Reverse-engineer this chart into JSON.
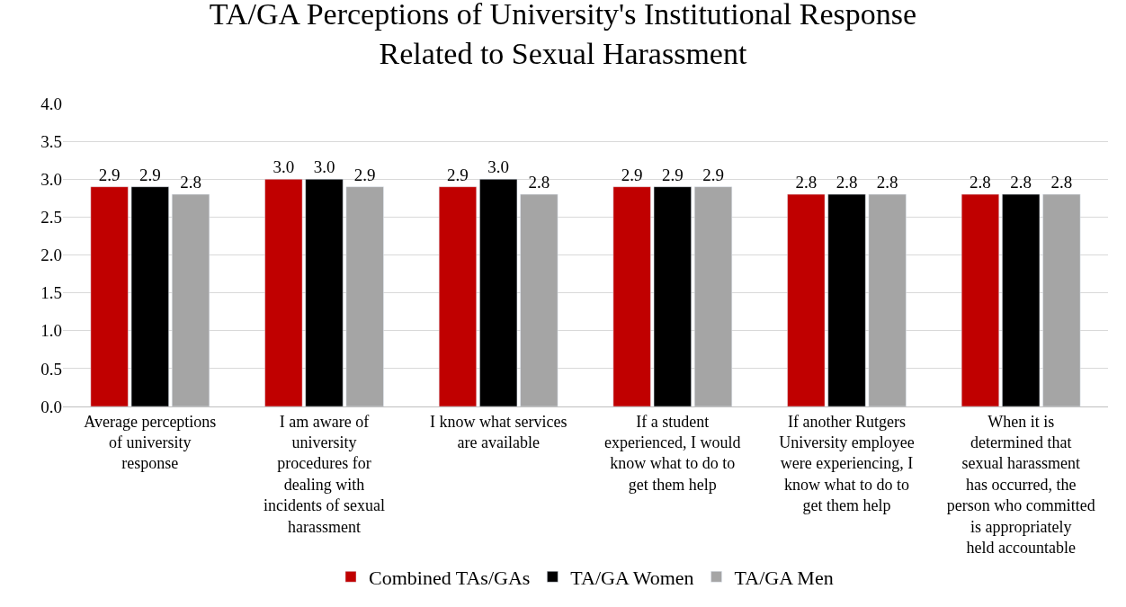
{
  "chart_data": {
    "type": "bar",
    "title": "TA/GA Perceptions of University's Institutional Response Related to Sexual Harassment",
    "categories": [
      "Average perceptions of university response",
      "I am aware of university procedures for dealing with incidents of sexual harassment",
      "I know what services are available",
      "If a student experienced, I would know what to do to get them help",
      "If another Rutgers University employee were experiencing, I know what to do to get them help",
      "When it is determined that sexual harassment has occurred, the person who committed is appropriately held accountable"
    ],
    "series": [
      {
        "name": "Combined TAs/GAs",
        "color": "#c00000",
        "values": [
          2.9,
          3.0,
          2.9,
          2.9,
          2.8,
          2.8
        ],
        "value_labels": [
          "2.9",
          "3.0",
          "2.9",
          "2.9",
          "2.8",
          "2.8"
        ]
      },
      {
        "name": "TA/GA Women",
        "color": "#000000",
        "values": [
          2.9,
          3.0,
          3.0,
          2.9,
          2.8,
          2.8
        ],
        "value_labels": [
          "2.9",
          "3.0",
          "3.0",
          "2.9",
          "2.8",
          "2.8"
        ]
      },
      {
        "name": "TA/GA Men",
        "color": "#a5a5a5",
        "values": [
          2.8,
          2.9,
          2.8,
          2.9,
          2.8,
          2.8
        ],
        "value_labels": [
          "2.8",
          "2.9",
          "2.8",
          "2.9",
          "2.8",
          "2.8"
        ]
      }
    ],
    "ylim": [
      0,
      4
    ],
    "yticks": [
      {
        "value": 0,
        "label": "0.0"
      },
      {
        "value": 0.5,
        "label": "0.5"
      },
      {
        "value": 1,
        "label": "1.0"
      },
      {
        "value": 1.5,
        "label": "1.5"
      },
      {
        "value": 2,
        "label": "2.0"
      },
      {
        "value": 2.5,
        "label": "2.5"
      },
      {
        "value": 3,
        "label": "3.0"
      },
      {
        "value": 3.5,
        "label": "3.5"
      },
      {
        "value": 4,
        "label": "4.0"
      }
    ],
    "grid": "y",
    "legend": "bottom"
  }
}
